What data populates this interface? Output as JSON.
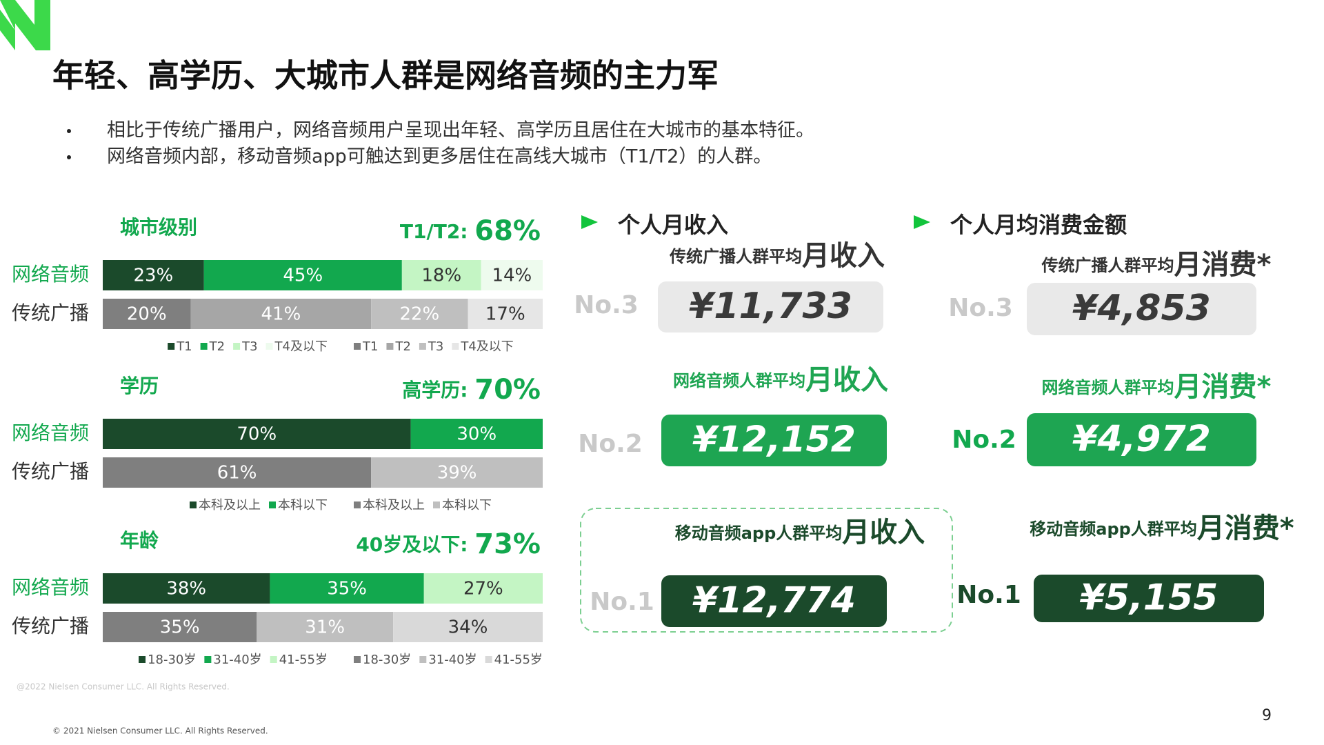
{
  "header": {
    "title": "年轻、高学历、大城市人群是网络音频的主力军"
  },
  "bullets": [
    "相比于传统广播用户，网络音频用户呈现出年轻、高学历且居住在大城市的基本特征。",
    "网络音频内部，移动音频app可触达到更多居住在高线大城市（T1/T2）的人群。"
  ],
  "chart_data": [
    {
      "type": "bar",
      "orientation": "horizontal",
      "stacked": true,
      "title": "城市级别",
      "annotation_label": "T1/T2: ",
      "annotation_value": "68%",
      "categories": [
        "网络音频",
        "传统广播"
      ],
      "xlim": [
        0,
        100
      ],
      "series": [
        {
          "name": "T1",
          "color": "#1b4a2b",
          "values": [
            23,
            null
          ],
          "value_labels": [
            "23%",
            null
          ]
        },
        {
          "name": "T2",
          "color": "#12a84e",
          "values": [
            45,
            null
          ],
          "value_labels": [
            "45%",
            null
          ]
        },
        {
          "name": "T3",
          "color": "#c4f5c4",
          "values": [
            18,
            null
          ],
          "value_labels": [
            "18%",
            null
          ]
        },
        {
          "name": "T4及以下",
          "color": "#eefbee",
          "values": [
            14,
            null
          ],
          "value_labels": [
            "14%",
            null
          ]
        },
        {
          "name": "T1",
          "color": "#7f7f7f",
          "values": [
            null,
            20
          ],
          "value_labels": [
            null,
            "20%"
          ]
        },
        {
          "name": "T2",
          "color": "#a6a6a6",
          "values": [
            null,
            41
          ],
          "value_labels": [
            null,
            "41%"
          ]
        },
        {
          "name": "T3",
          "color": "#bfbfbf",
          "values": [
            null,
            22
          ],
          "value_labels": [
            null,
            "22%"
          ]
        },
        {
          "name": "T4及以下",
          "color": "#e6e6e6",
          "values": [
            null,
            17
          ],
          "value_labels": [
            null,
            "17%"
          ]
        }
      ]
    },
    {
      "type": "bar",
      "orientation": "horizontal",
      "stacked": true,
      "title": "学历",
      "annotation_label": "高学历: ",
      "annotation_value": "70%",
      "categories": [
        "网络音频",
        "传统广播"
      ],
      "xlim": [
        0,
        100
      ],
      "series": [
        {
          "name": "本科及以上",
          "color": "#1b4a2b",
          "values": [
            70,
            null
          ],
          "value_labels": [
            "70%",
            null
          ]
        },
        {
          "name": "本科以下",
          "color": "#12a84e",
          "values": [
            30,
            null
          ],
          "value_labels": [
            "30%",
            null
          ]
        },
        {
          "name": "本科及以上",
          "color": "#7f7f7f",
          "values": [
            null,
            61
          ],
          "value_labels": [
            null,
            "61%"
          ]
        },
        {
          "name": "本科以下",
          "color": "#bfbfbf",
          "values": [
            null,
            39
          ],
          "value_labels": [
            null,
            "39%"
          ]
        }
      ]
    },
    {
      "type": "bar",
      "orientation": "horizontal",
      "stacked": true,
      "title": "年龄",
      "annotation_label": "40岁及以下: ",
      "annotation_value": "73%",
      "categories": [
        "网络音频",
        "传统广播"
      ],
      "xlim": [
        0,
        100
      ],
      "series": [
        {
          "name": "18-30岁",
          "color": "#1b4a2b",
          "values": [
            38,
            null
          ],
          "value_labels": [
            "38%",
            null
          ]
        },
        {
          "name": "31-40岁",
          "color": "#12a84e",
          "values": [
            35,
            null
          ],
          "value_labels": [
            "35%",
            null
          ]
        },
        {
          "name": "41-55岁",
          "color": "#c4f5c4",
          "values": [
            27,
            null
          ],
          "value_labels": [
            "27%",
            null
          ]
        },
        {
          "name": "18-30岁",
          "color": "#7f7f7f",
          "values": [
            null,
            35
          ],
          "value_labels": [
            null,
            "35%"
          ]
        },
        {
          "name": "31-40岁",
          "color": "#bfbfbf",
          "values": [
            null,
            31
          ],
          "value_labels": [
            null,
            "31%"
          ]
        },
        {
          "name": "41-55岁",
          "color": "#d9d9d9",
          "values": [
            null,
            34
          ],
          "value_labels": [
            null,
            "34%"
          ]
        }
      ]
    }
  ],
  "panels": [
    {
      "heading": "个人月收入",
      "items": [
        {
          "rank": "No.3",
          "label_prefix": "传统广播人群平均",
          "label_key": "月收入",
          "value": "¥11,733"
        },
        {
          "rank": "No.2",
          "label_prefix": "网络音频人群平均",
          "label_key": "月收入",
          "value": "¥12,152"
        },
        {
          "rank": "No.1",
          "label_prefix": "移动音频app人群平均",
          "label_key": "月收入",
          "value": "¥12,774"
        }
      ]
    },
    {
      "heading": "个人月均消费金额",
      "items": [
        {
          "rank": "No.3",
          "label_prefix": "传统广播人群平均",
          "label_key": "月消费*",
          "value": "¥4,853"
        },
        {
          "rank": "No.2",
          "label_prefix": "网络音频人群平均",
          "label_key": "月消费*",
          "value": "¥4,972"
        },
        {
          "rank": "No.1",
          "label_prefix": "移动音频app人群平均",
          "label_key": "月消费*",
          "value": "¥5,155"
        }
      ]
    }
  ],
  "footer": {
    "watermark": "@2022 Nielsen Consumer LLC. All Rights Reserved.",
    "copyright": "© 2021 Nielsen Consumer LLC. All Rights Reserved.",
    "page": "9"
  }
}
